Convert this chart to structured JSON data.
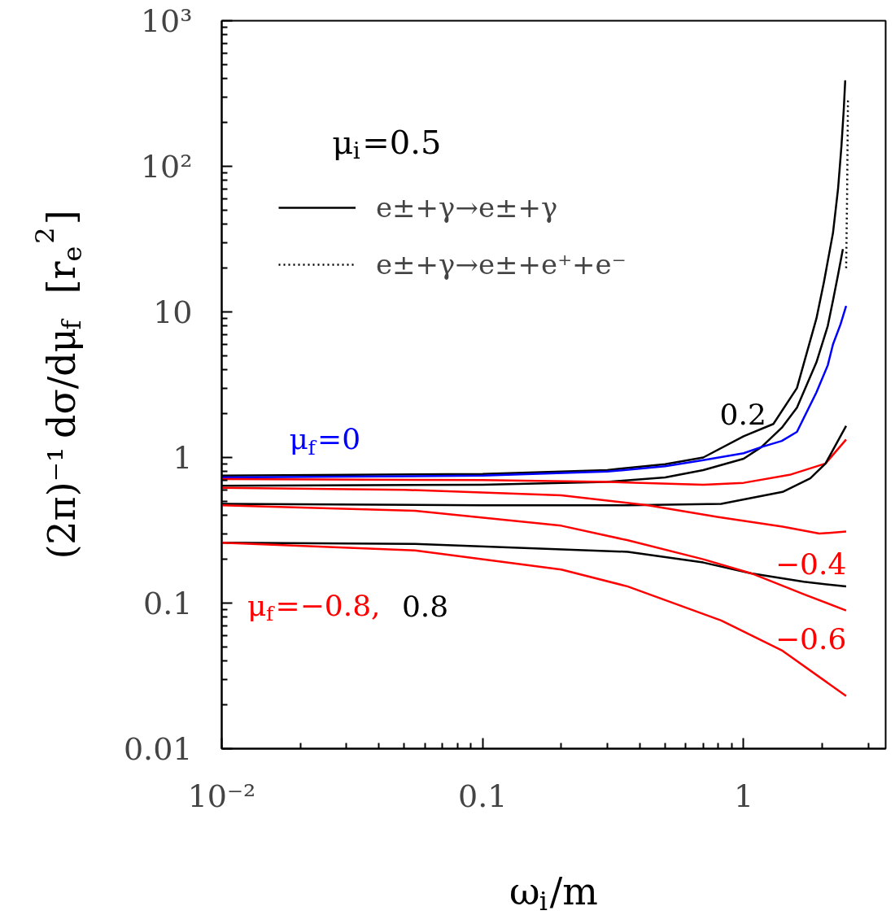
{
  "chart_data": {
    "type": "line",
    "xlabel": "ω$_{i}$/m",
    "ylabel": "(2π)⁻¹ dσ/dμ$_{f}$  [r$_{e}$$^{2}$]",
    "legend_title": "μ$_{i}$=0.5",
    "log": "xy",
    "grid": false,
    "legend": "top",
    "line_style": "solid",
    "marker": "none",
    "xlim": [
      0.01,
      3.5
    ],
    "ylim": [
      0.01,
      1000
    ],
    "xticks": [
      {
        "value": 0.01,
        "label": "10⁻²"
      },
      0.1,
      1
    ],
    "yticks": [
      0.01,
      0.1,
      1,
      10,
      {
        "value": 100,
        "label": "10²"
      },
      {
        "value": 1000,
        "label": "10³"
      }
    ],
    "series": [
      {
        "name": "e±+γ→e±+γ",
        "color": "#000000",
        "x": [
          0.01,
          0.1,
          0.3,
          0.5,
          0.7,
          1.0,
          1.3,
          1.6,
          1.9,
          2.03,
          2.2,
          2.3,
          2.37,
          2.42,
          2.45
        ],
        "values": [
          0.75,
          0.77,
          0.82,
          0.9,
          1.0,
          1.4,
          1.7,
          3.0,
          9,
          16,
          35,
          70,
          138,
          250,
          390
        ]
      },
      {
        "color": "#000000",
        "x": [
          0.01,
          0.1,
          0.3,
          0.5,
          0.7,
          1.0,
          1.17,
          1.4,
          1.6,
          1.9,
          2.1,
          2.2,
          2.3,
          2.4
        ],
        "values": [
          0.64,
          0.65,
          0.68,
          0.73,
          0.82,
          0.98,
          1.18,
          1.6,
          2.2,
          4.5,
          8,
          12,
          18,
          27
        ]
      },
      {
        "name": "e±+γ→e±+e⁺+e⁻",
        "color": "#000000",
        "line_style": "dotted",
        "x": [
          2.47,
          2.49,
          2.51
        ],
        "values": [
          20,
          60,
          290
        ]
      },
      {
        "color": "#0000ff",
        "x": [
          0.01,
          0.1,
          0.3,
          0.5,
          0.7,
          1.0,
          1.17,
          1.4,
          1.6,
          1.9,
          2.1,
          2.2,
          2.35,
          2.47
        ],
        "values": [
          0.73,
          0.75,
          0.8,
          0.87,
          0.96,
          1.07,
          1.18,
          1.3,
          1.5,
          2.8,
          4.3,
          6,
          8.2,
          11
        ]
      },
      {
        "color": "#ff0000",
        "x": [
          0.01,
          0.1,
          0.3,
          0.7,
          1.0,
          1.5,
          2.06,
          2.47
        ],
        "values": [
          0.71,
          0.7,
          0.68,
          0.65,
          0.67,
          0.76,
          0.91,
          1.33
        ]
      },
      {
        "color": "#000000",
        "x": [
          0.01,
          0.1,
          0.36,
          0.82,
          1.41,
          1.8,
          2.06,
          2.47
        ],
        "values": [
          0.48,
          0.47,
          0.47,
          0.48,
          0.58,
          0.72,
          0.91,
          1.65
        ]
      },
      {
        "color": "#ff0000",
        "x": [
          0.01,
          0.05,
          0.2,
          0.43,
          0.8,
          1.41,
          1.95,
          2.47
        ],
        "values": [
          0.62,
          0.6,
          0.55,
          0.47,
          0.39,
          0.335,
          0.3,
          0.31
        ]
      },
      {
        "color": "#000000",
        "x": [
          0.01,
          0.055,
          0.36,
          0.7,
          1.07,
          1.7,
          2.47
        ],
        "values": [
          0.26,
          0.255,
          0.225,
          0.19,
          0.16,
          0.14,
          0.13
        ]
      },
      {
        "color": "#ff0000",
        "x": [
          0.01,
          0.055,
          0.2,
          0.36,
          0.7,
          1.07,
          1.7,
          2.47
        ],
        "values": [
          0.47,
          0.43,
          0.34,
          0.27,
          0.2,
          0.16,
          0.115,
          0.089
        ]
      },
      {
        "color": "#ff0000",
        "x": [
          0.01,
          0.055,
          0.2,
          0.36,
          0.82,
          1.41,
          2.47
        ],
        "values": [
          0.26,
          0.23,
          0.17,
          0.13,
          0.076,
          0.047,
          0.023
        ]
      }
    ],
    "annotations": [
      {
        "text": "μ$_{f}$=0",
        "x": 0.01,
        "y": 0.73
      },
      {
        "text": "0.2",
        "x": 1.3,
        "y": 1.7
      },
      {
        "text": "−0.4",
        "x": 2.47,
        "y": 0.31
      },
      {
        "text": "−0.6",
        "x": 2.47,
        "y": 0.089
      },
      {
        "text": "μ$_{f}$=−0.8,",
        "x": 0.055,
        "y": 0.23
      },
      {
        "text": "0.8",
        "x": 0.055,
        "y": 0.255
      }
    ]
  }
}
